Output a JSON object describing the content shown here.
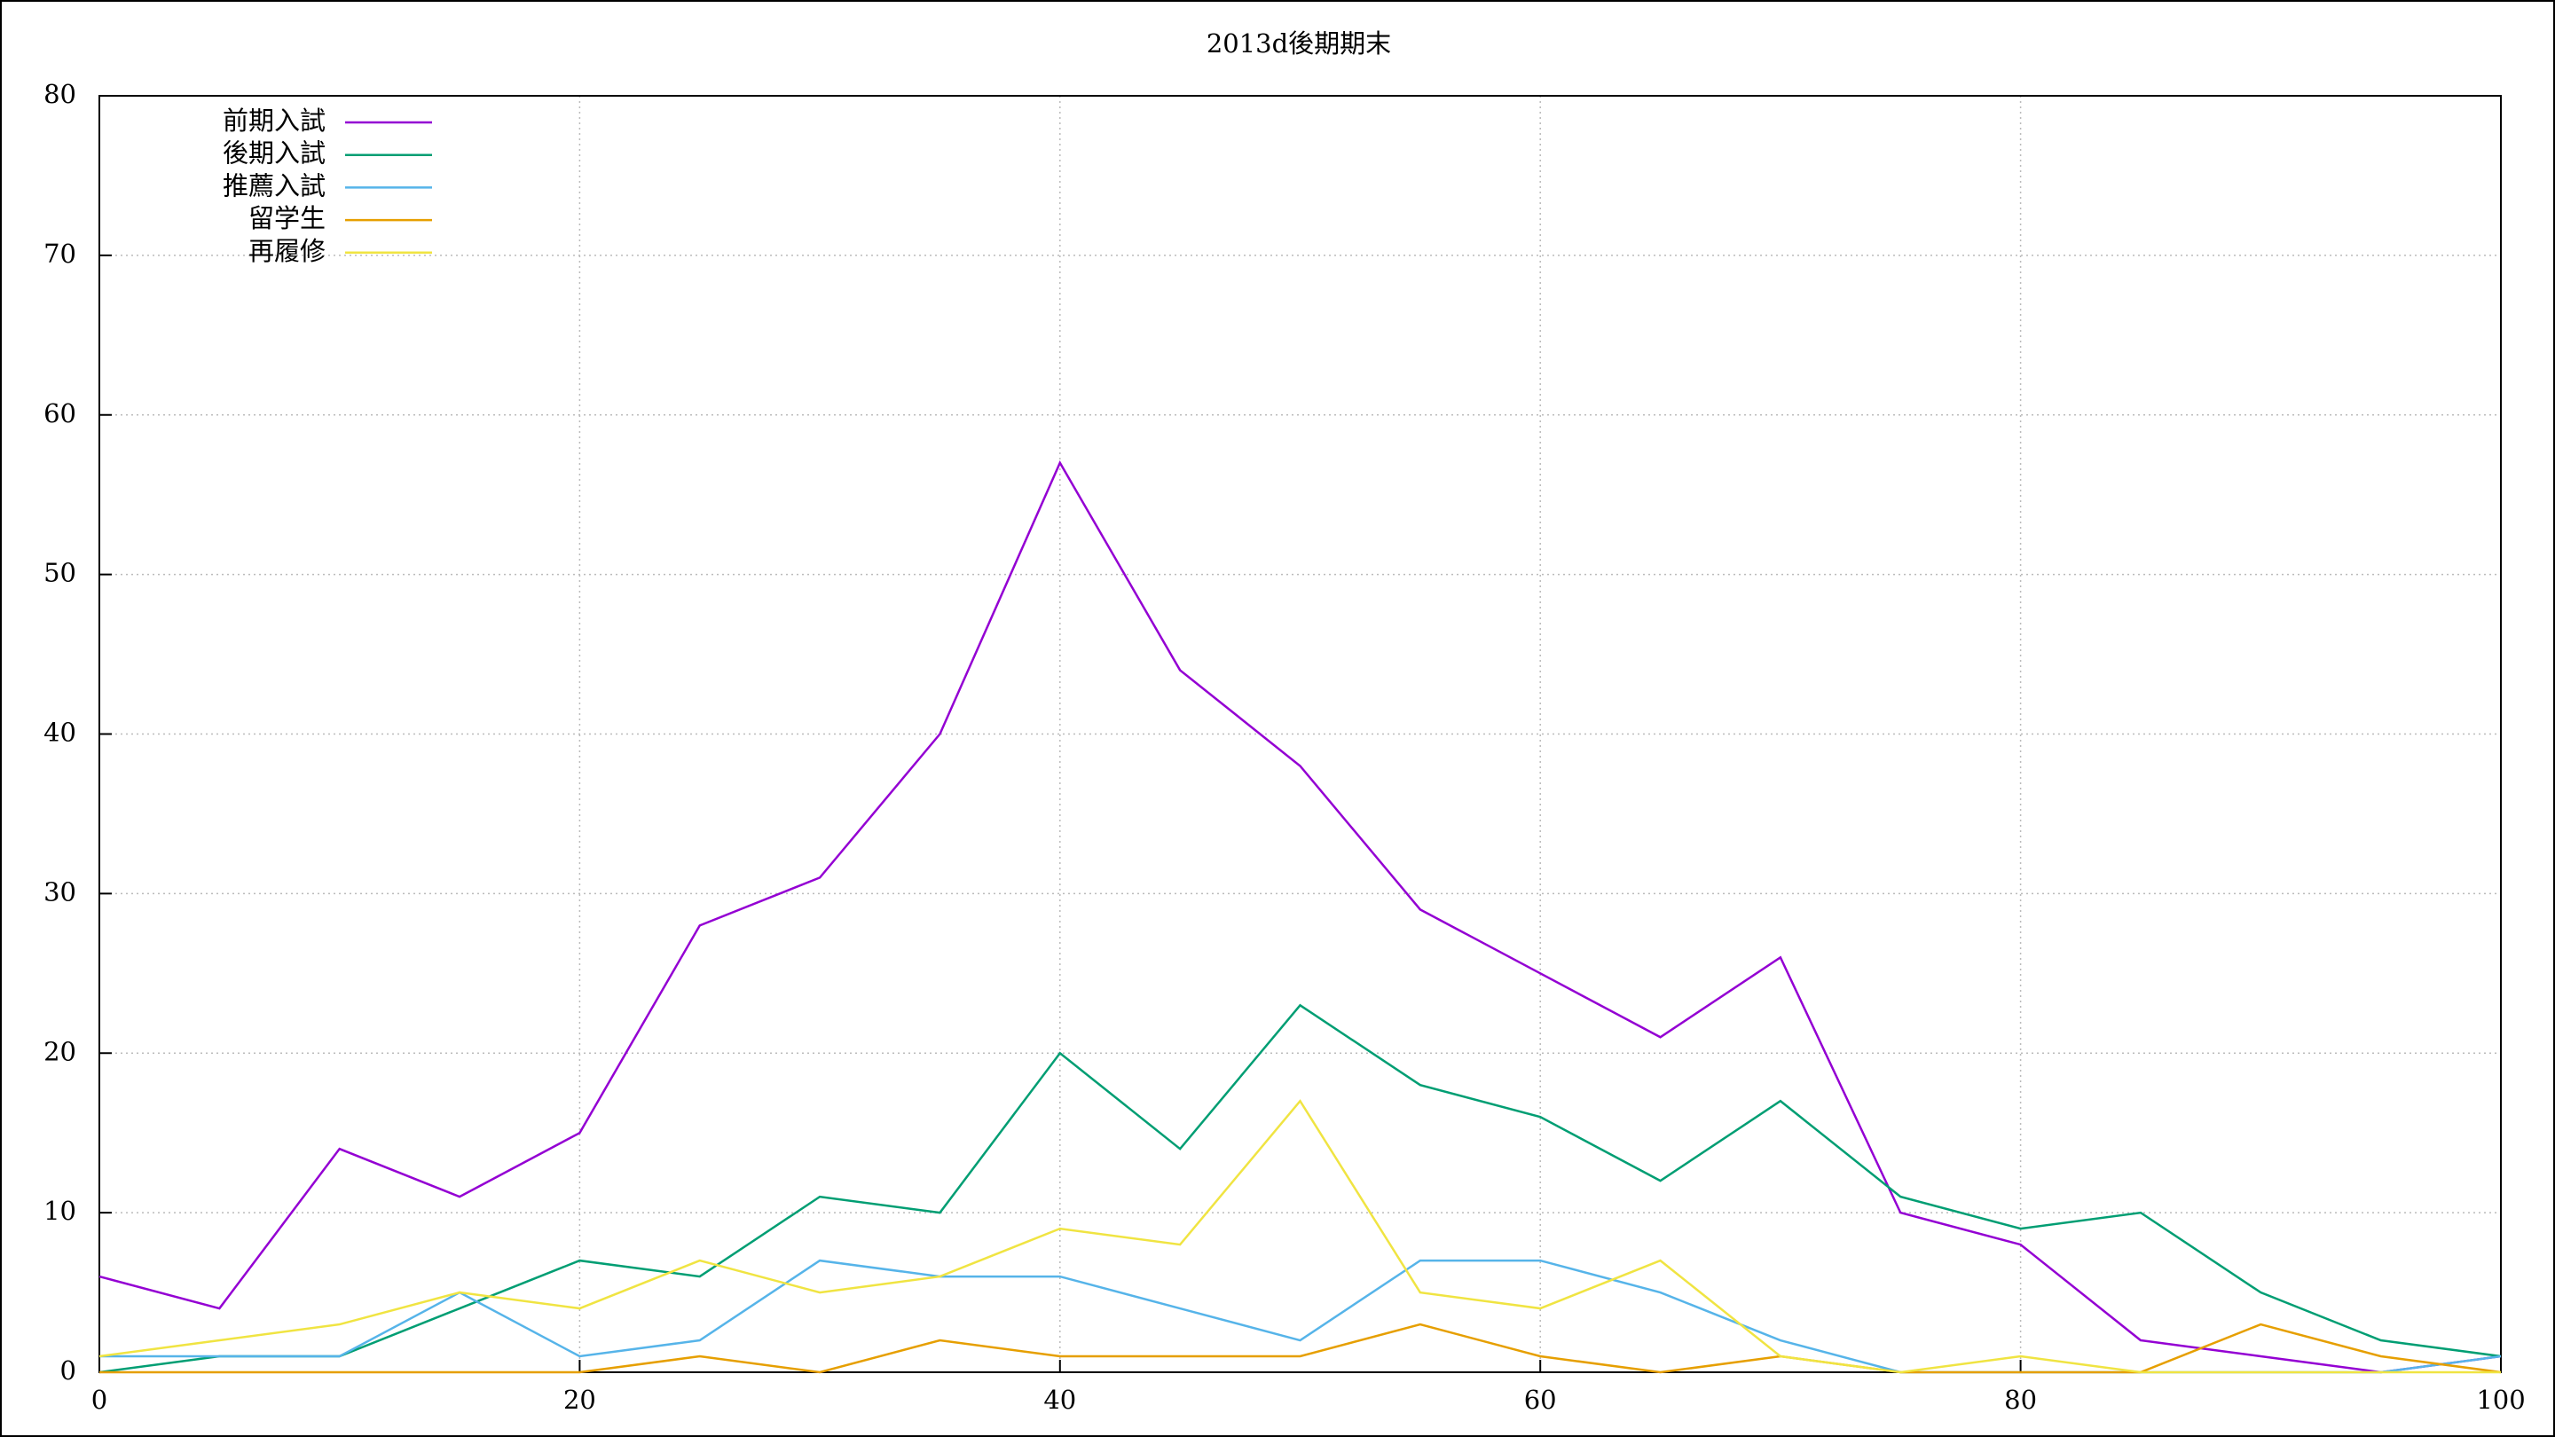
{
  "chart_data": {
    "type": "line",
    "title": "2013d後期期末",
    "x": [
      0,
      5,
      10,
      15,
      20,
      25,
      30,
      35,
      40,
      45,
      50,
      55,
      60,
      65,
      70,
      75,
      80,
      85,
      90,
      95,
      100
    ],
    "series": [
      {
        "name": "前期入試",
        "color": "#9400d3",
        "values": [
          6,
          4,
          14,
          11,
          15,
          28,
          31,
          40,
          57,
          44,
          38,
          29,
          25,
          21,
          26,
          10,
          8,
          2,
          1,
          0,
          1
        ]
      },
      {
        "name": "後期入試",
        "color": "#009e73",
        "values": [
          0,
          1,
          1,
          4,
          7,
          6,
          11,
          10,
          20,
          14,
          23,
          18,
          16,
          12,
          17,
          11,
          9,
          10,
          5,
          2,
          1
        ]
      },
      {
        "name": "推薦入試",
        "color": "#56b4e9",
        "values": [
          1,
          1,
          1,
          5,
          1,
          2,
          7,
          6,
          6,
          4,
          2,
          7,
          7,
          5,
          2,
          0,
          0,
          0,
          0,
          0,
          1
        ]
      },
      {
        "name": "留学生",
        "color": "#e69f00",
        "values": [
          0,
          0,
          0,
          0,
          0,
          1,
          0,
          2,
          1,
          1,
          1,
          3,
          1,
          0,
          1,
          0,
          0,
          0,
          3,
          1,
          0
        ]
      },
      {
        "name": "再履修",
        "color": "#f0e442",
        "values": [
          1,
          2,
          3,
          5,
          4,
          7,
          5,
          6,
          9,
          8,
          17,
          5,
          4,
          7,
          1,
          0,
          1,
          0,
          0,
          0,
          0
        ]
      }
    ],
    "xlim": [
      0,
      100
    ],
    "xticks": [
      0,
      20,
      40,
      60,
      80,
      100
    ],
    "ylim": [
      0,
      80
    ],
    "yticks": [
      0,
      10,
      20,
      30,
      40,
      50,
      60,
      70,
      80
    ],
    "grid": true,
    "legend": "top-left"
  }
}
